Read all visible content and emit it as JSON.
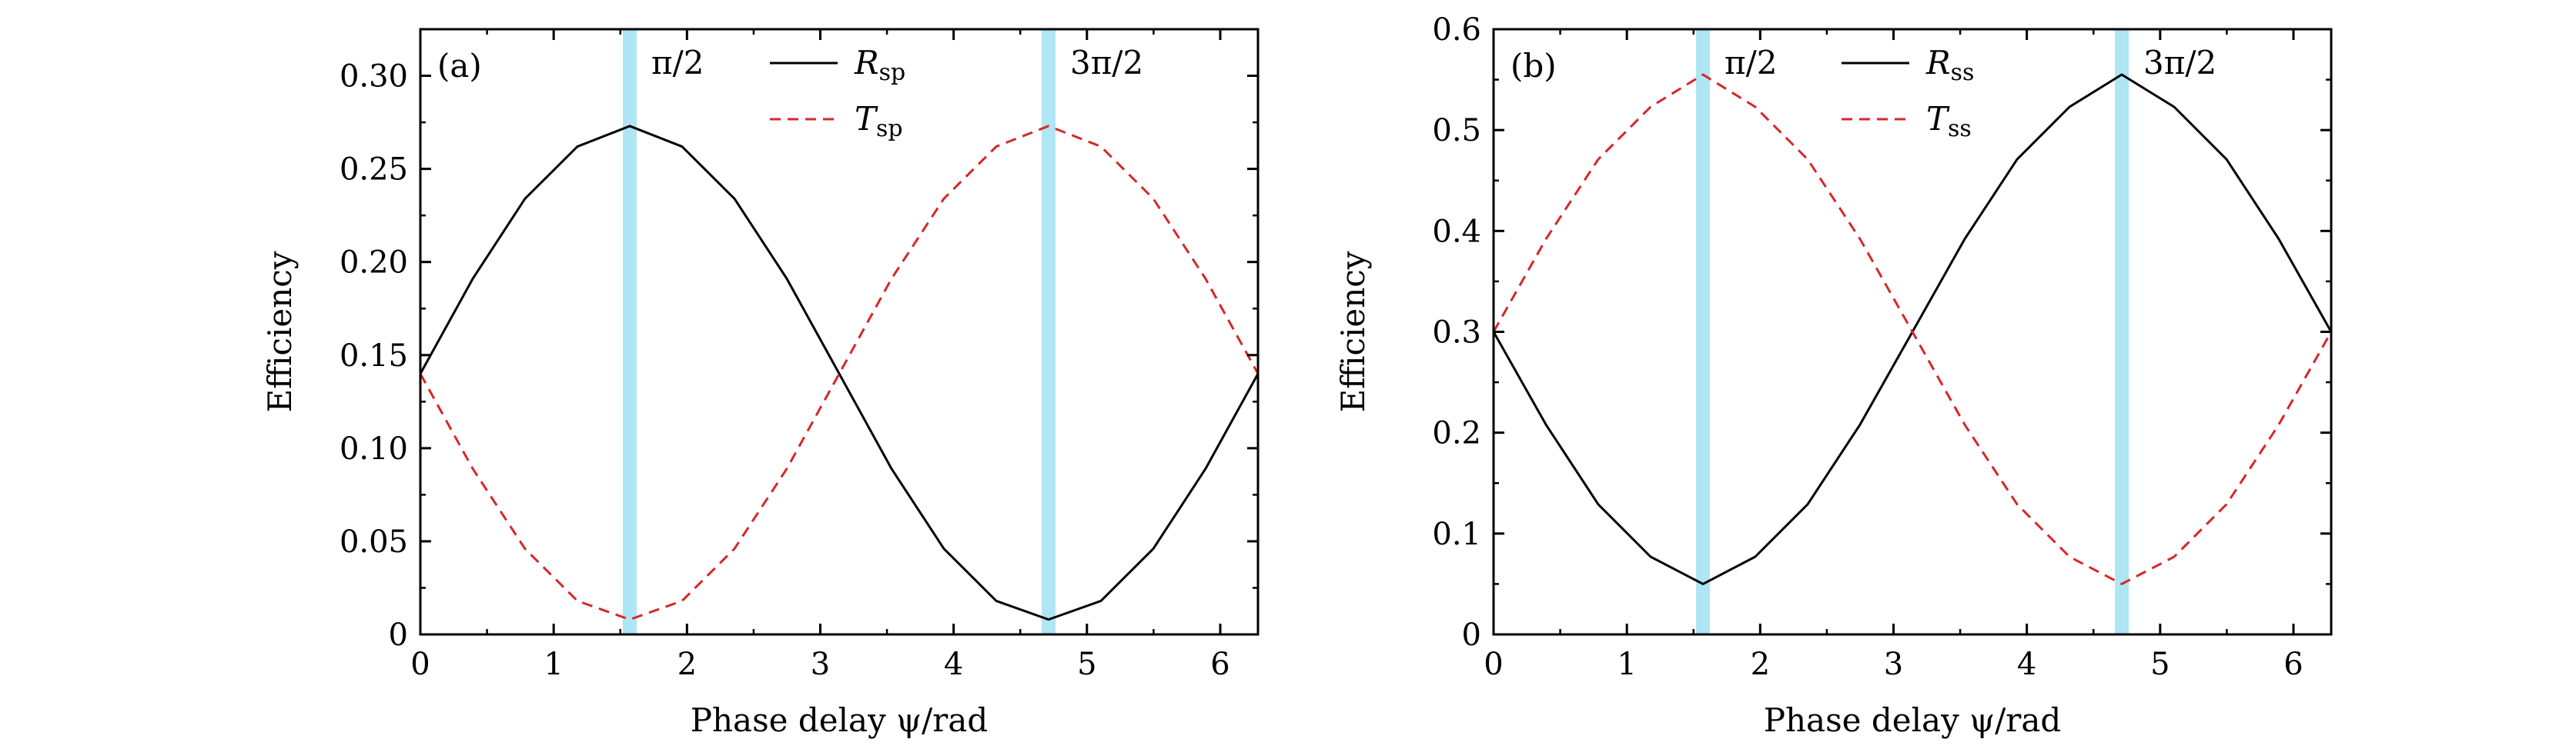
{
  "chart_data": [
    {
      "type": "line",
      "panel_label": "(a)",
      "xlabel": "Phase delay ψ/rad",
      "ylabel": "Efficiency",
      "xlim": [
        0,
        6.283
      ],
      "ylim": [
        0,
        0.325
      ],
      "xticks": [
        0,
        1,
        2,
        3,
        4,
        5,
        6
      ],
      "xtick_labels": [
        "0",
        "1",
        "2",
        "3",
        "4",
        "5",
        "6"
      ],
      "yticks": [
        0,
        0.05,
        0.1,
        0.15,
        0.2,
        0.25,
        0.3
      ],
      "ytick_labels": [
        "0",
        "0.05",
        "0.10",
        "0.15",
        "0.20",
        "0.25",
        "0.30"
      ],
      "grid": false,
      "legend_position": "top-center",
      "vlines": [
        {
          "x": 1.5708,
          "label": "π/2",
          "color": "#aee6f3"
        },
        {
          "x": 4.7124,
          "label": "3π/2",
          "color": "#aee6f3"
        }
      ],
      "series": [
        {
          "name": "Rsp",
          "name_main": "R",
          "name_sub": "sp",
          "color": "#000000",
          "dash": "solid",
          "x": [
            0,
            0.393,
            0.785,
            1.178,
            1.571,
            1.963,
            2.356,
            2.749,
            3.142,
            3.534,
            3.927,
            4.32,
            4.712,
            5.105,
            5.498,
            5.89,
            6.283
          ],
          "y": [
            0.14,
            0.191,
            0.234,
            0.262,
            0.273,
            0.262,
            0.234,
            0.191,
            0.14,
            0.089,
            0.046,
            0.018,
            0.008,
            0.018,
            0.046,
            0.089,
            0.14
          ]
        },
        {
          "name": "Tsp",
          "name_main": "T",
          "name_sub": "sp",
          "color": "#d62728",
          "dash": "dashed",
          "x": [
            0,
            0.393,
            0.785,
            1.178,
            1.571,
            1.963,
            2.356,
            2.749,
            3.142,
            3.534,
            3.927,
            4.32,
            4.712,
            5.105,
            5.498,
            5.89,
            6.283
          ],
          "y": [
            0.14,
            0.089,
            0.046,
            0.018,
            0.008,
            0.018,
            0.046,
            0.089,
            0.14,
            0.191,
            0.234,
            0.262,
            0.273,
            0.262,
            0.234,
            0.191,
            0.14
          ]
        }
      ]
    },
    {
      "type": "line",
      "panel_label": "(b)",
      "xlabel": "Phase delay ψ/rad",
      "ylabel": "Efficiency",
      "xlim": [
        0,
        6.283
      ],
      "ylim": [
        0,
        0.6
      ],
      "xticks": [
        0,
        1,
        2,
        3,
        4,
        5,
        6
      ],
      "xtick_labels": [
        "0",
        "1",
        "2",
        "3",
        "4",
        "5",
        "6"
      ],
      "yticks": [
        0,
        0.1,
        0.2,
        0.3,
        0.4,
        0.5,
        0.6
      ],
      "ytick_labels": [
        "0",
        "0.1",
        "0.2",
        "0.3",
        "0.4",
        "0.5",
        "0.6"
      ],
      "grid": false,
      "legend_position": "top-center",
      "vlines": [
        {
          "x": 1.5708,
          "label": "π/2",
          "color": "#aee6f3"
        },
        {
          "x": 4.7124,
          "label": "3π/2",
          "color": "#aee6f3"
        }
      ],
      "series": [
        {
          "name": "Rss",
          "name_main": "R",
          "name_sub": "ss",
          "color": "#000000",
          "dash": "solid",
          "x": [
            0,
            0.393,
            0.785,
            1.178,
            1.571,
            1.963,
            2.356,
            2.749,
            3.142,
            3.534,
            3.927,
            4.32,
            4.712,
            5.105,
            5.498,
            5.89,
            6.283
          ],
          "y": [
            0.3,
            0.208,
            0.129,
            0.077,
            0.05,
            0.077,
            0.129,
            0.208,
            0.3,
            0.392,
            0.471,
            0.523,
            0.555,
            0.523,
            0.471,
            0.392,
            0.3
          ]
        },
        {
          "name": "Tss",
          "name_main": "T",
          "name_sub": "ss",
          "color": "#d62728",
          "dash": "dashed",
          "x": [
            0,
            0.393,
            0.785,
            1.178,
            1.571,
            1.963,
            2.356,
            2.749,
            3.142,
            3.534,
            3.927,
            4.32,
            4.712,
            5.105,
            5.498,
            5.89,
            6.283
          ],
          "y": [
            0.3,
            0.392,
            0.471,
            0.523,
            0.555,
            0.523,
            0.471,
            0.392,
            0.3,
            0.208,
            0.129,
            0.077,
            0.05,
            0.077,
            0.129,
            0.208,
            0.3
          ]
        }
      ]
    }
  ]
}
